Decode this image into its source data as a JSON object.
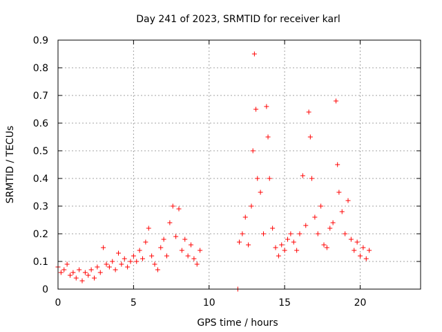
{
  "chart_data": {
    "type": "scatter",
    "title": "Day 241 of 2023, SRMTID for receiver karl",
    "xlabel": "GPS time / hours",
    "ylabel": "SRMTID / TECUs",
    "xlim": [
      0,
      24
    ],
    "ylim": [
      0,
      0.9
    ],
    "x_ticks": [
      0,
      5,
      10,
      15,
      20
    ],
    "x_tick_labels": [
      "0",
      "5",
      "10",
      "15",
      "20"
    ],
    "y_ticks": [
      0,
      0.1,
      0.2,
      0.3,
      0.4,
      0.5,
      0.6,
      0.7,
      0.8,
      0.9
    ],
    "y_tick_labels": [
      "0",
      "0.1",
      "0.2",
      "0.3",
      "0.4",
      "0.5",
      "0.6",
      "0.7",
      "0.8",
      "0.9"
    ],
    "grid": true,
    "marker": "+",
    "marker_color": "#ff0000",
    "series": [
      {
        "name": "SRMTID",
        "points": [
          [
            0.0,
            0.08
          ],
          [
            0.2,
            0.06
          ],
          [
            0.4,
            0.07
          ],
          [
            0.6,
            0.09
          ],
          [
            0.8,
            0.05
          ],
          [
            1.0,
            0.06
          ],
          [
            1.2,
            0.04
          ],
          [
            1.4,
            0.07
          ],
          [
            1.6,
            0.03
          ],
          [
            1.8,
            0.06
          ],
          [
            2.0,
            0.05
          ],
          [
            2.2,
            0.07
          ],
          [
            2.4,
            0.04
          ],
          [
            2.6,
            0.08
          ],
          [
            2.8,
            0.06
          ],
          [
            3.0,
            0.15
          ],
          [
            3.2,
            0.09
          ],
          [
            3.4,
            0.08
          ],
          [
            3.6,
            0.1
          ],
          [
            3.8,
            0.07
          ],
          [
            4.0,
            0.13
          ],
          [
            4.2,
            0.09
          ],
          [
            4.4,
            0.11
          ],
          [
            4.6,
            0.08
          ],
          [
            4.8,
            0.1
          ],
          [
            5.0,
            0.12
          ],
          [
            5.2,
            0.1
          ],
          [
            5.4,
            0.14
          ],
          [
            5.6,
            0.11
          ],
          [
            5.8,
            0.17
          ],
          [
            6.0,
            0.22
          ],
          [
            6.2,
            0.12
          ],
          [
            6.4,
            0.09
          ],
          [
            6.6,
            0.07
          ],
          [
            6.8,
            0.15
          ],
          [
            7.0,
            0.18
          ],
          [
            7.2,
            0.12
          ],
          [
            7.4,
            0.24
          ],
          [
            7.6,
            0.3
          ],
          [
            7.8,
            0.19
          ],
          [
            8.0,
            0.29
          ],
          [
            8.2,
            0.14
          ],
          [
            8.4,
            0.18
          ],
          [
            8.6,
            0.12
          ],
          [
            8.8,
            0.16
          ],
          [
            9.0,
            0.11
          ],
          [
            9.2,
            0.09
          ],
          [
            9.4,
            0.14
          ],
          [
            11.9,
            0.0
          ],
          [
            12.0,
            0.17
          ],
          [
            12.2,
            0.2
          ],
          [
            12.4,
            0.26
          ],
          [
            12.6,
            0.16
          ],
          [
            12.8,
            0.3
          ],
          [
            12.9,
            0.5
          ],
          [
            13.0,
            0.85
          ],
          [
            13.1,
            0.65
          ],
          [
            13.2,
            0.4
          ],
          [
            13.4,
            0.35
          ],
          [
            13.6,
            0.2
          ],
          [
            13.8,
            0.66
          ],
          [
            13.9,
            0.55
          ],
          [
            14.0,
            0.4
          ],
          [
            14.2,
            0.22
          ],
          [
            14.4,
            0.15
          ],
          [
            14.6,
            0.12
          ],
          [
            14.8,
            0.16
          ],
          [
            15.0,
            0.14
          ],
          [
            15.2,
            0.18
          ],
          [
            15.4,
            0.2
          ],
          [
            15.6,
            0.17
          ],
          [
            15.8,
            0.14
          ],
          [
            16.0,
            0.2
          ],
          [
            16.2,
            0.41
          ],
          [
            16.4,
            0.23
          ],
          [
            16.6,
            0.64
          ],
          [
            16.7,
            0.55
          ],
          [
            16.8,
            0.4
          ],
          [
            17.0,
            0.26
          ],
          [
            17.2,
            0.2
          ],
          [
            17.4,
            0.3
          ],
          [
            17.6,
            0.16
          ],
          [
            17.8,
            0.15
          ],
          [
            18.0,
            0.22
          ],
          [
            18.2,
            0.24
          ],
          [
            18.4,
            0.68
          ],
          [
            18.5,
            0.45
          ],
          [
            18.6,
            0.35
          ],
          [
            18.8,
            0.28
          ],
          [
            19.0,
            0.2
          ],
          [
            19.2,
            0.32
          ],
          [
            19.4,
            0.18
          ],
          [
            19.6,
            0.14
          ],
          [
            19.8,
            0.17
          ],
          [
            20.0,
            0.12
          ],
          [
            20.2,
            0.15
          ],
          [
            20.4,
            0.11
          ],
          [
            20.6,
            0.14
          ]
        ]
      }
    ]
  }
}
